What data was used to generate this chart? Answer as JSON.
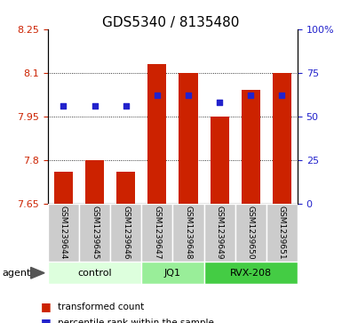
{
  "title": "GDS5340 / 8135480",
  "samples": [
    "GSM1239644",
    "GSM1239645",
    "GSM1239646",
    "GSM1239647",
    "GSM1239648",
    "GSM1239649",
    "GSM1239650",
    "GSM1239651"
  ],
  "bar_values": [
    7.76,
    7.8,
    7.76,
    8.13,
    8.1,
    7.95,
    8.04,
    8.1
  ],
  "percentile_values": [
    56,
    56,
    56,
    62,
    62,
    58,
    62,
    62
  ],
  "ylim_left": [
    7.65,
    8.25
  ],
  "ylim_right": [
    0,
    100
  ],
  "yticks_left": [
    7.65,
    7.8,
    7.95,
    8.1,
    8.25
  ],
  "yticks_right": [
    0,
    25,
    50,
    75,
    100
  ],
  "ytick_labels_left": [
    "7.65",
    "7.8",
    "7.95",
    "8.1",
    "8.25"
  ],
  "ytick_labels_right": [
    "0",
    "25",
    "50",
    "75",
    "100%"
  ],
  "bar_color": "#cc2200",
  "dot_color": "#2222cc",
  "bar_bottom": 7.65,
  "groups": [
    {
      "label": "control",
      "indices": [
        0,
        1,
        2
      ],
      "color": "#ddffdd"
    },
    {
      "label": "JQ1",
      "indices": [
        3,
        4
      ],
      "color": "#99ee99"
    },
    {
      "label": "RVX-208",
      "indices": [
        5,
        6,
        7
      ],
      "color": "#44cc44"
    }
  ],
  "agent_label": "agent",
  "legend_bar_label": "transformed count",
  "legend_dot_label": "percentile rank within the sample",
  "grid_color": "#000000",
  "title_fontsize": 11,
  "tick_fontsize": 8,
  "label_fontsize": 6.5,
  "group_fontsize": 8,
  "bar_width": 0.6,
  "cell_bg": "#cccccc",
  "cell_border": "#ffffff"
}
